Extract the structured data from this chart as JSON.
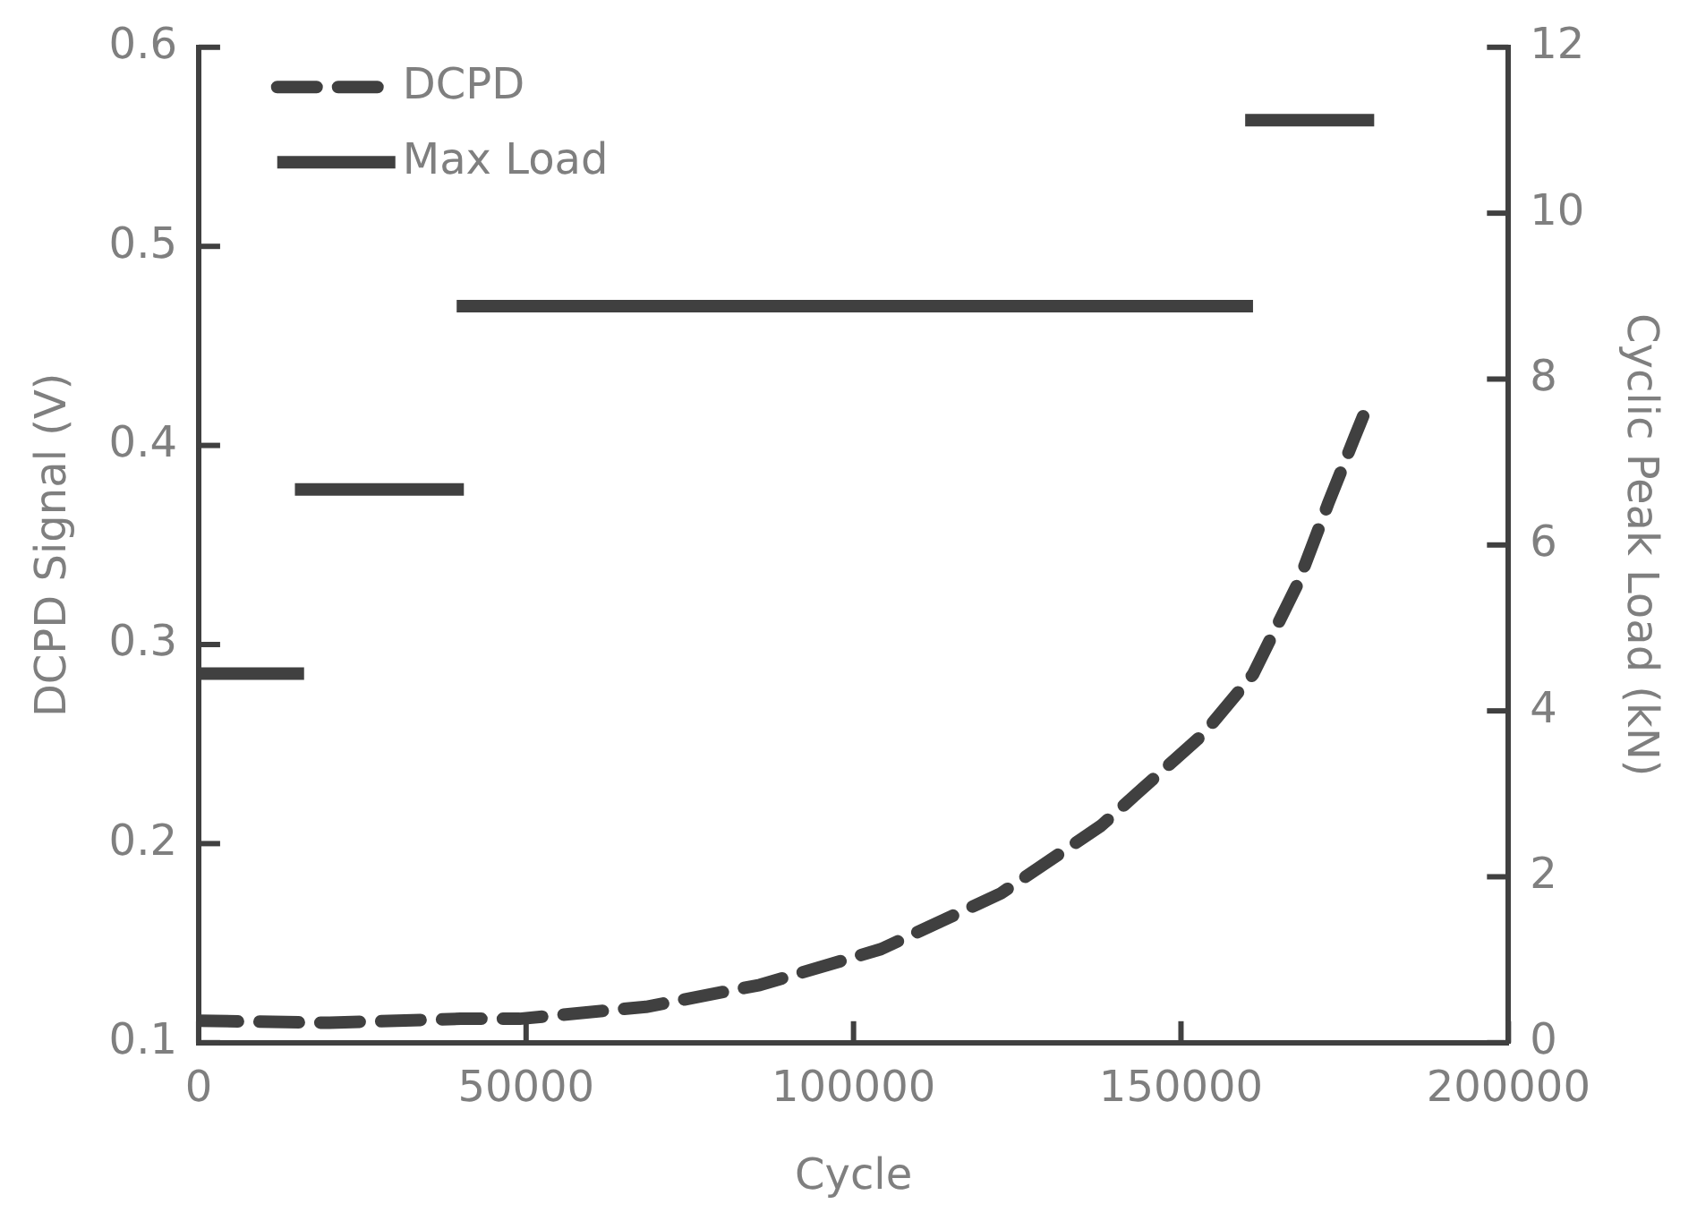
{
  "chart_data": {
    "type": "line",
    "xlabel": "Cycle",
    "ylabel": "DCPD Signal (V)",
    "y2label": "Cyclic Peak Load (kN)",
    "xlim": [
      0,
      200000
    ],
    "xticks": [
      0,
      50000,
      100000,
      150000,
      200000
    ],
    "ylim": [
      0.1,
      0.6
    ],
    "yticks": [
      0.1,
      0.2,
      0.3,
      0.4,
      0.5,
      0.6
    ],
    "y2lim": [
      0,
      12
    ],
    "y2ticks": [
      0,
      2,
      4,
      6,
      8,
      10,
      12
    ],
    "legend": "top left",
    "marker": "none",
    "grid": false,
    "series": [
      {
        "name": "DCPD",
        "color": "#404040",
        "line_style": "dashed",
        "x": [
          0,
          20000,
          40000,
          49000,
          68300,
          85700,
          104200,
          122500,
          137800,
          153400,
          161000,
          167900,
          172500,
          176500,
          178600
        ],
        "values": [
          0.111,
          0.11,
          0.112,
          0.112,
          0.118,
          0.129,
          0.147,
          0.175,
          0.209,
          0.255,
          0.285,
          0.331,
          0.371,
          0.404,
          0.421
        ]
      },
      {
        "name": "Max Load",
        "color": "#404040",
        "line_style": "solid",
        "axis": "y2",
        "x": [
          0,
          16100
        ],
        "values": [
          4.45,
          4.45
        ]
      },
      {
        "color": "#404040",
        "line_style": "solid",
        "axis": "y2",
        "x": [
          14700,
          40500
        ],
        "values": [
          6.67,
          6.67
        ]
      },
      {
        "color": "#404040",
        "line_style": "solid",
        "axis": "y2",
        "x": [
          39400,
          161000
        ],
        "values": [
          8.88,
          8.88
        ]
      },
      {
        "color": "#404040",
        "line_style": "solid",
        "axis": "y2",
        "x": [
          159800,
          179500
        ],
        "values": [
          11.12,
          11.12
        ]
      }
    ]
  }
}
